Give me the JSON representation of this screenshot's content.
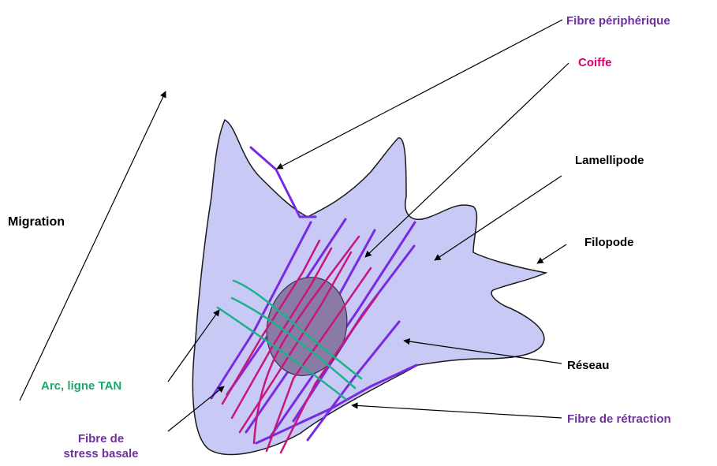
{
  "labels": {
    "fibre_peripherique": "Fibre périphérique",
    "coiffe": "Coiffe",
    "lamellipode": "Lamellipode",
    "filopode": "Filopode",
    "migration": "Migration",
    "reseau": "Réseau",
    "arc_ligne_tan": "Arc, ligne TAN",
    "fibre_de_retraction": "Fibre de rétraction",
    "fibre_de_stress_basale_1": "Fibre de",
    "fibre_de_stress_basale_2": "stress basale"
  },
  "colors": {
    "cell_fill": "#c9c9f5",
    "cell_outline": "#1a1a1a",
    "nucleus_fill": "#8a7aa6",
    "peripheral_fiber": "#7a2ae0",
    "cap_fiber": "#c8177a",
    "arc_fiber": "#19b38a",
    "arrow": "#000000"
  }
}
